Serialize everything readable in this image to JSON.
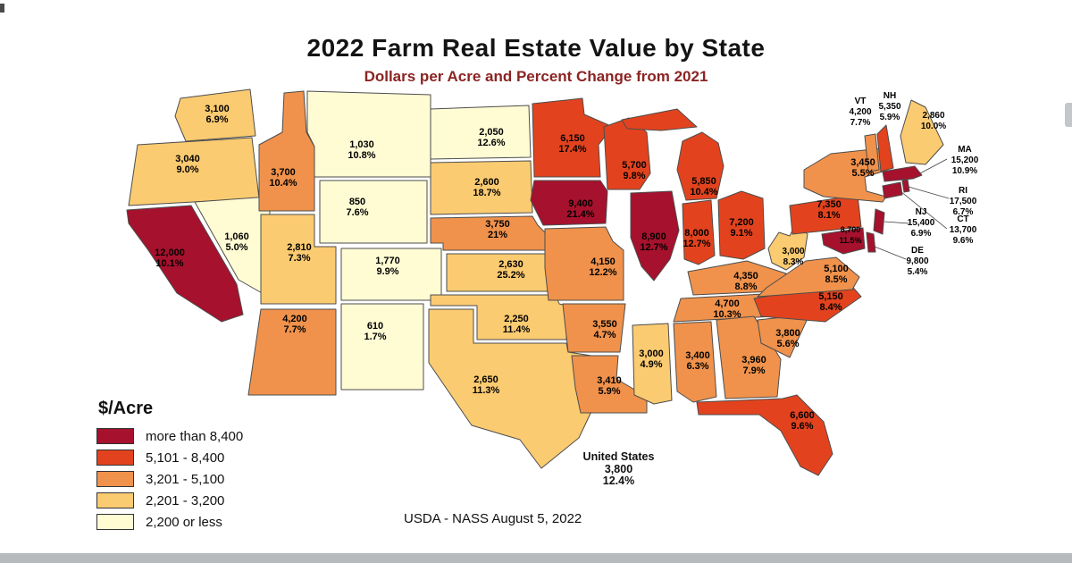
{
  "footer_note": "USDA - NASS August 5, 2022",
  "chart_data": {
    "type": "heatmap",
    "subtype": "choropleth-us-states",
    "title": "2022 Farm Real Estate Value by State",
    "subtitle": "Dollars per Acre and Percent Change from 2021",
    "legend_title": "$/Acre",
    "unit": "dollars per acre",
    "bins": [
      {
        "label": "more than 8,400",
        "color": "#A6112D"
      },
      {
        "label": "5,101 - 8,400",
        "color": "#E2431E"
      },
      {
        "label": "3,201 - 5,100",
        "color": "#F0924C"
      },
      {
        "label": "2,201 - 3,200",
        "color": "#FBCB71"
      },
      {
        "label": "2,200 or less",
        "color": "#FFFCD4"
      }
    ],
    "us_summary": {
      "label": "United States",
      "value": "3,800",
      "pct": "12.4%"
    },
    "states": [
      {
        "id": "WA",
        "value": "3,100",
        "pct": "6.9%",
        "bin": 3
      },
      {
        "id": "OR",
        "value": "3,040",
        "pct": "9.0%",
        "bin": 3
      },
      {
        "id": "CA",
        "value": "12,000",
        "pct": "10.1%",
        "bin": 0
      },
      {
        "id": "NV",
        "value": "1,060",
        "pct": "5.0%",
        "bin": 4
      },
      {
        "id": "ID",
        "value": "3,700",
        "pct": "10.4%",
        "bin": 2
      },
      {
        "id": "MT",
        "value": "1,030",
        "pct": "10.8%",
        "bin": 4
      },
      {
        "id": "WY",
        "value": "850",
        "pct": "7.6%",
        "bin": 4
      },
      {
        "id": "UT",
        "value": "2,810",
        "pct": "7.3%",
        "bin": 3
      },
      {
        "id": "CO",
        "value": "1,770",
        "pct": "9.9%",
        "bin": 4
      },
      {
        "id": "AZ",
        "value": "4,200",
        "pct": "7.7%",
        "bin": 2
      },
      {
        "id": "NM",
        "value": "610",
        "pct": "1.7%",
        "bin": 4
      },
      {
        "id": "ND",
        "value": "2,050",
        "pct": "12.6%",
        "bin": 4
      },
      {
        "id": "SD",
        "value": "2,600",
        "pct": "18.7%",
        "bin": 3
      },
      {
        "id": "NE",
        "value": "3,750",
        "pct": "21%",
        "bin": 2
      },
      {
        "id": "KS",
        "value": "2,630",
        "pct": "25.2%",
        "bin": 3
      },
      {
        "id": "OK",
        "value": "2,250",
        "pct": "11.4%",
        "bin": 3
      },
      {
        "id": "TX",
        "value": "2,650",
        "pct": "11.3%",
        "bin": 3
      },
      {
        "id": "MN",
        "value": "6,150",
        "pct": "17.4%",
        "bin": 1
      },
      {
        "id": "IA",
        "value": "9,400",
        "pct": "21.4%",
        "bin": 0
      },
      {
        "id": "MO",
        "value": "4,150",
        "pct": "12.2%",
        "bin": 2
      },
      {
        "id": "AR",
        "value": "3,550",
        "pct": "4.7%",
        "bin": 2
      },
      {
        "id": "LA",
        "value": "3,410",
        "pct": "5.9%",
        "bin": 2
      },
      {
        "id": "WI",
        "value": "5,700",
        "pct": "9.8%",
        "bin": 1
      },
      {
        "id": "IL",
        "value": "8,900",
        "pct": "12.7%",
        "bin": 0
      },
      {
        "id": "MI",
        "value": "5,850",
        "pct": "10.4%",
        "bin": 1
      },
      {
        "id": "IN",
        "value": "8,000",
        "pct": "12.7%",
        "bin": 1
      },
      {
        "id": "OH",
        "value": "7,200",
        "pct": "9.1%",
        "bin": 1
      },
      {
        "id": "KY",
        "value": "4,350",
        "pct": "8.8%",
        "bin": 2
      },
      {
        "id": "TN",
        "value": "4,700",
        "pct": "10.3%",
        "bin": 2
      },
      {
        "id": "MS",
        "value": "3,000",
        "pct": "4.9%",
        "bin": 3
      },
      {
        "id": "AL",
        "value": "3,400",
        "pct": "6.3%",
        "bin": 2
      },
      {
        "id": "GA",
        "value": "3,960",
        "pct": "7.9%",
        "bin": 2
      },
      {
        "id": "FL",
        "value": "6,600",
        "pct": "9.6%",
        "bin": 1
      },
      {
        "id": "SC",
        "value": "3,800",
        "pct": "5.6%",
        "bin": 2
      },
      {
        "id": "NC",
        "value": "5,150",
        "pct": "8.4%",
        "bin": 1
      },
      {
        "id": "VA",
        "value": "5,100",
        "pct": "8.5%",
        "bin": 2
      },
      {
        "id": "WV",
        "value": "3,000",
        "pct": "8.3%",
        "bin": 3
      },
      {
        "id": "PA",
        "value": "7,350",
        "pct": "8.1%",
        "bin": 1
      },
      {
        "id": "NY",
        "value": "3,450",
        "pct": "5.5%",
        "bin": 2
      },
      {
        "id": "MD",
        "value": "8,700",
        "pct": "11.5%",
        "bin": 0
      },
      {
        "id": "DE",
        "value": "9,800",
        "pct": "5.4%",
        "bin": 0
      },
      {
        "id": "NJ",
        "value": "15,400",
        "pct": "6.9%",
        "bin": 0
      },
      {
        "id": "CT",
        "value": "13,700",
        "pct": "9.6%",
        "bin": 0
      },
      {
        "id": "RI",
        "value": "17,500",
        "pct": "6.7%",
        "bin": 0
      },
      {
        "id": "MA",
        "value": "15,200",
        "pct": "10.9%",
        "bin": 0
      },
      {
        "id": "VT",
        "value": "4,200",
        "pct": "7.7%",
        "bin": 2
      },
      {
        "id": "NH",
        "value": "5,350",
        "pct": "5.9%",
        "bin": 1
      },
      {
        "id": "ME",
        "value": "2,860",
        "pct": "10.0%",
        "bin": 3
      }
    ]
  }
}
